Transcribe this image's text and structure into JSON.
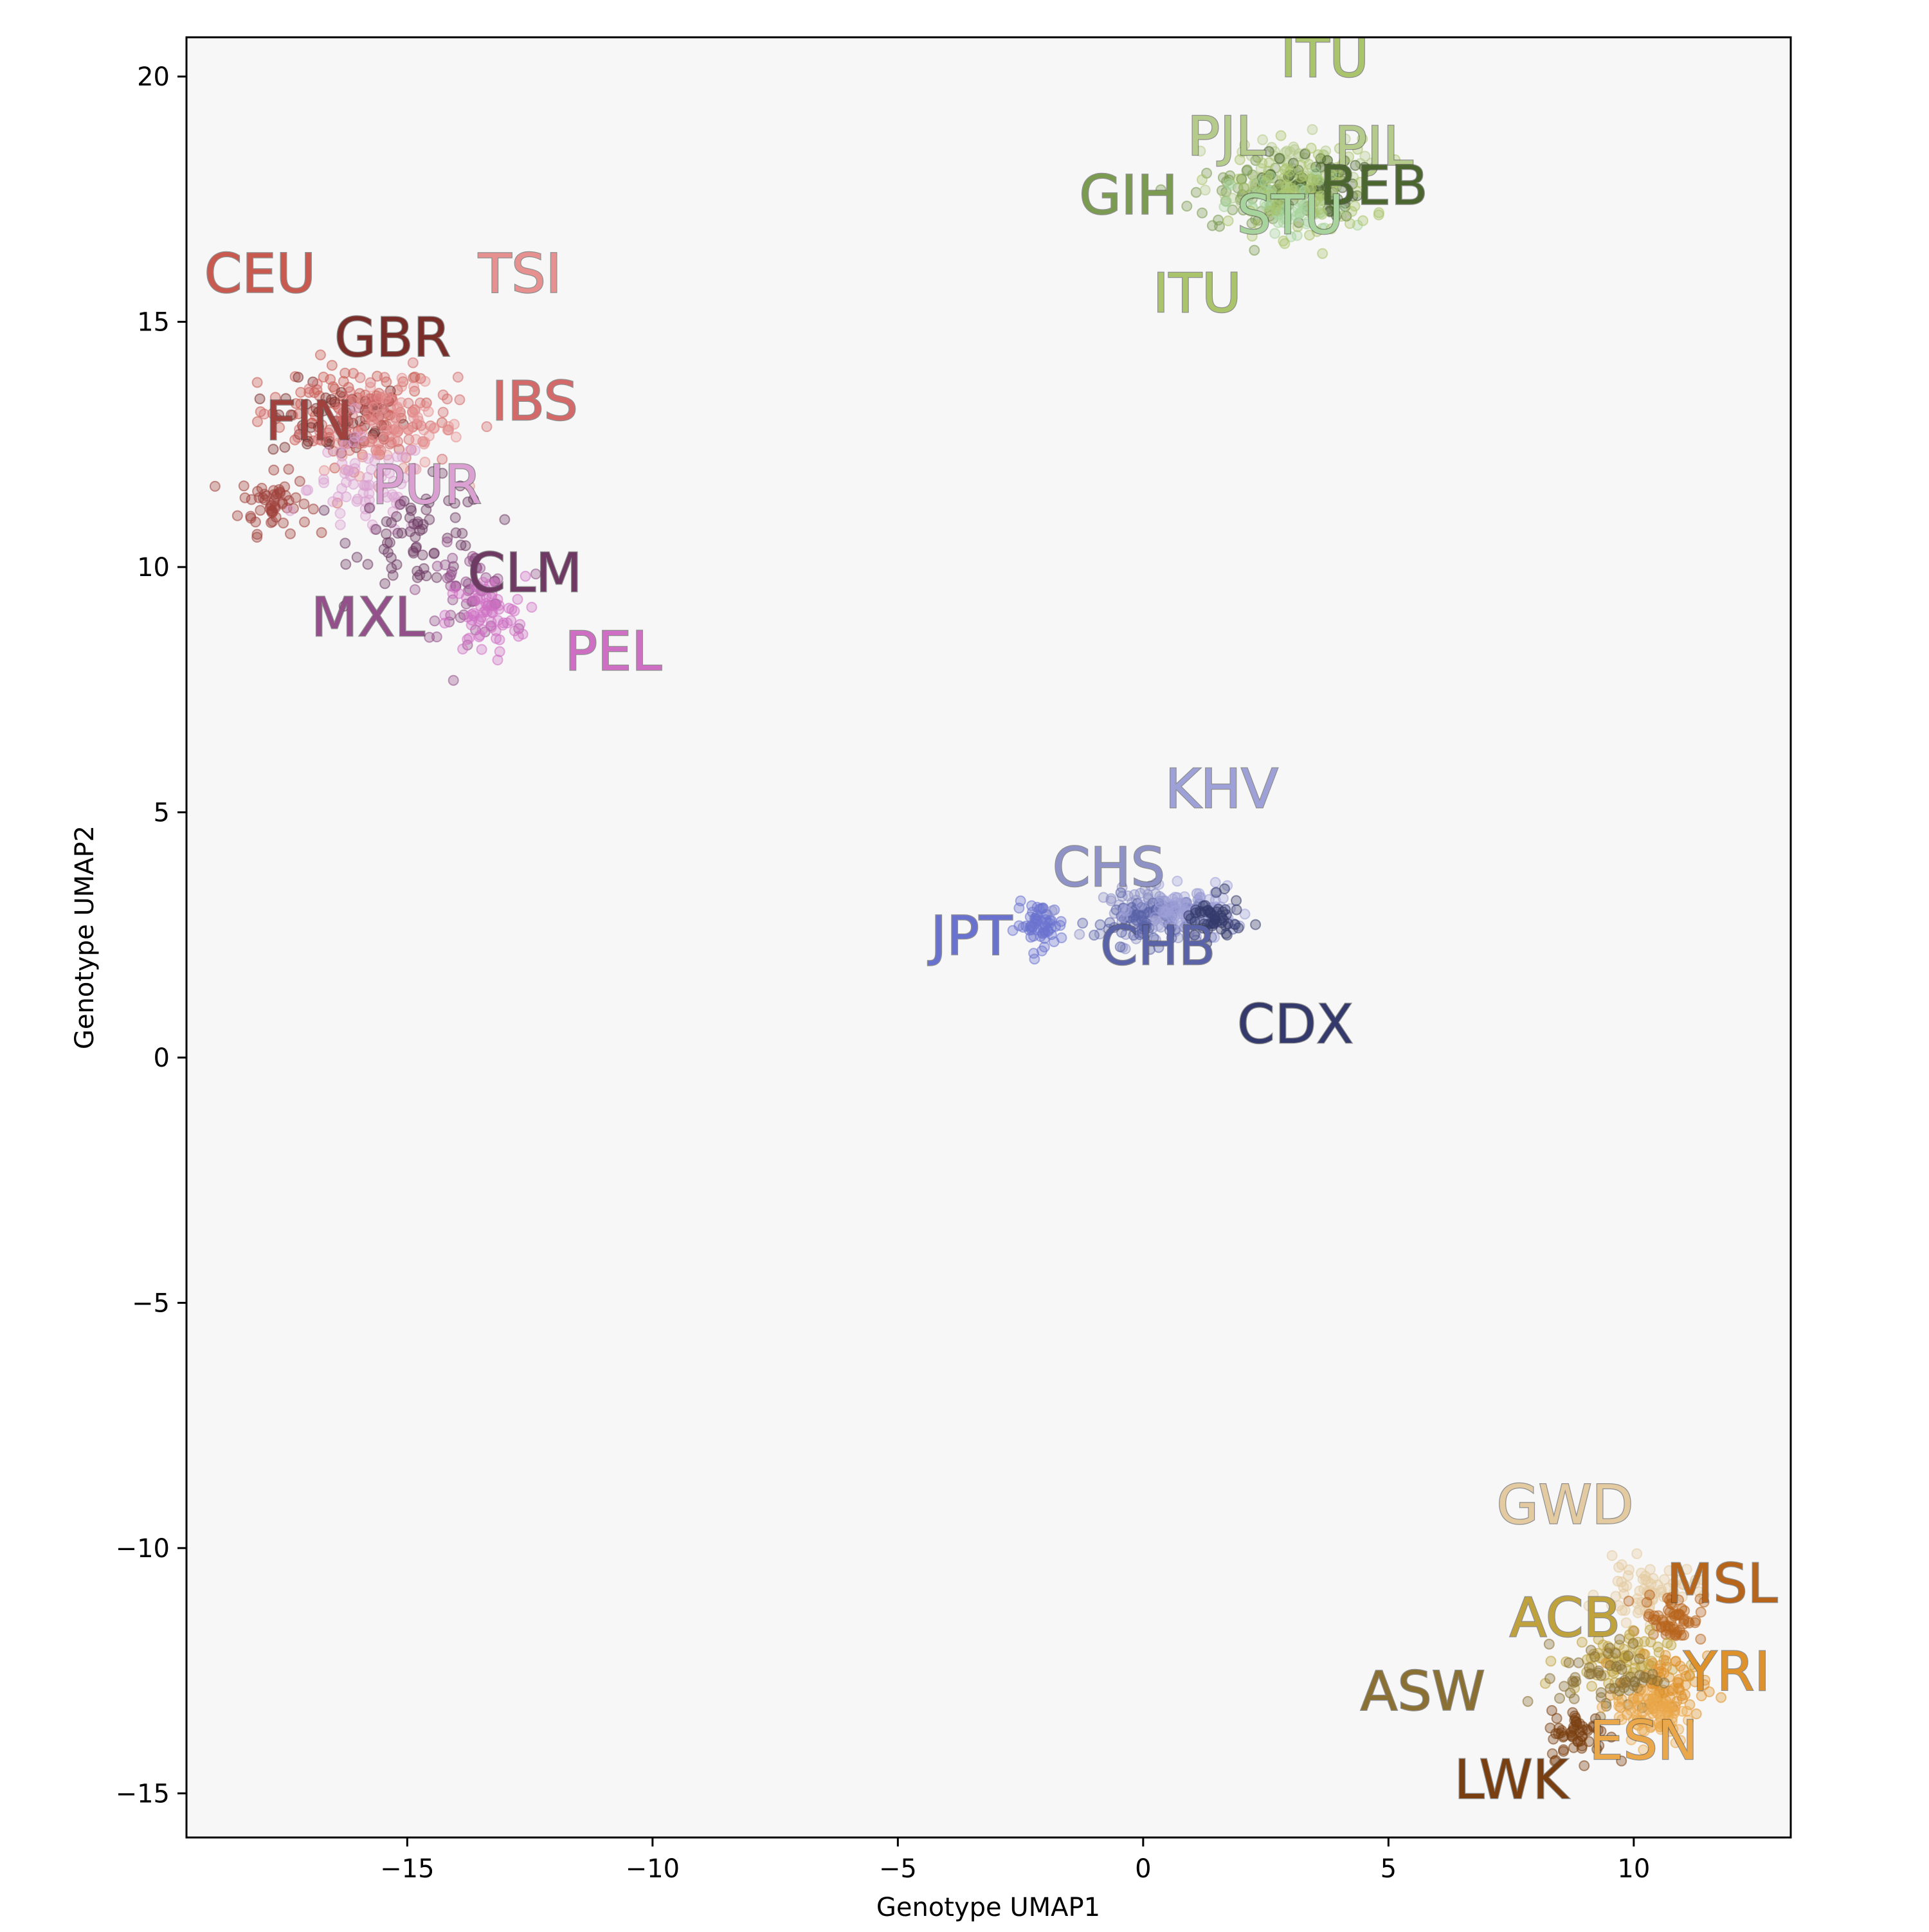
{
  "chart_data": {
    "type": "scatter",
    "title": "",
    "xlabel": "Genotype UMAP1",
    "ylabel": "Genotype UMAP2",
    "xlim": [
      -19.5,
      13.2
    ],
    "ylim": [
      -15.9,
      20.8
    ],
    "xticks": [
      -15,
      -10,
      -5,
      0,
      5,
      10
    ],
    "yticks": [
      -15,
      -10,
      -5,
      0,
      5,
      10,
      15,
      20
    ],
    "xtick_labels": [
      "−15",
      "−10",
      "−5",
      "0",
      "5",
      "10"
    ],
    "ytick_labels": [
      "−15",
      "−10",
      "−5",
      "0",
      "5",
      "10",
      "15",
      "20"
    ],
    "plot_background": "#f7f7f7",
    "grid": false,
    "legend": "none",
    "series": [
      {
        "name": "CEU",
        "color": "#c95a50",
        "cx": -16.2,
        "cy": 13.2,
        "sx": 0.9,
        "sy": 0.45,
        "n": 90
      },
      {
        "name": "GBR",
        "color": "#7a2e2a",
        "cx": -16.4,
        "cy": 13.0,
        "sx": 0.7,
        "sy": 0.4,
        "n": 60
      },
      {
        "name": "FIN",
        "color": "#a0413d",
        "cx": -17.7,
        "cy": 11.3,
        "sx": 0.35,
        "sy": 0.3,
        "n": 55
      },
      {
        "name": "IBS",
        "color": "#d4696a",
        "cx": -15.6,
        "cy": 13.0,
        "sx": 0.8,
        "sy": 0.5,
        "n": 80
      },
      {
        "name": "TSI",
        "color": "#e6908f",
        "cx": -15.3,
        "cy": 12.8,
        "sx": 0.7,
        "sy": 0.45,
        "n": 70
      },
      {
        "name": "PUR",
        "color": "#dba0d2",
        "cx": -15.8,
        "cy": 11.6,
        "sx": 0.6,
        "sy": 0.5,
        "n": 70
      },
      {
        "name": "CLM",
        "color": "#6e3a63",
        "cx": -14.7,
        "cy": 10.6,
        "sx": 0.7,
        "sy": 0.55,
        "n": 70
      },
      {
        "name": "MXL",
        "color": "#93508a",
        "cx": -13.8,
        "cy": 9.5,
        "sx": 0.45,
        "sy": 0.45,
        "n": 50
      },
      {
        "name": "PEL",
        "color": "#cf6fc4",
        "cx": -13.4,
        "cy": 9.0,
        "sx": 0.4,
        "sy": 0.4,
        "n": 70
      },
      {
        "name": "GIH",
        "color": "#7a9b50",
        "cx": 2.4,
        "cy": 17.6,
        "sx": 0.7,
        "sy": 0.4,
        "n": 80
      },
      {
        "name": "PJL",
        "color": "#b5cb8c",
        "cx": 3.0,
        "cy": 18.1,
        "sx": 0.7,
        "sy": 0.35,
        "n": 80
      },
      {
        "name": "BEB",
        "color": "#4c6630",
        "cx": 3.4,
        "cy": 17.8,
        "sx": 0.5,
        "sy": 0.35,
        "n": 60
      },
      {
        "name": "STU",
        "color": "#a7d39d",
        "cx": 3.0,
        "cy": 17.3,
        "sx": 0.6,
        "sy": 0.35,
        "n": 70
      },
      {
        "name": "ITU",
        "color": "#a9c46a",
        "cx": 3.3,
        "cy": 17.7,
        "sx": 0.7,
        "sy": 0.5,
        "n": 80
      },
      {
        "name": "JPT",
        "color": "#6a72cf",
        "cx": -2.1,
        "cy": 2.7,
        "sx": 0.25,
        "sy": 0.22,
        "n": 60
      },
      {
        "name": "CHS",
        "color": "#8e92c6",
        "cx": 0.4,
        "cy": 2.95,
        "sx": 0.6,
        "sy": 0.25,
        "n": 90
      },
      {
        "name": "CHB",
        "color": "#5a62a8",
        "cx": 0.2,
        "cy": 2.8,
        "sx": 0.6,
        "sy": 0.25,
        "n": 80
      },
      {
        "name": "KHV",
        "color": "#9ea0d8",
        "cx": 0.9,
        "cy": 3.0,
        "sx": 0.5,
        "sy": 0.22,
        "n": 70
      },
      {
        "name": "CDX",
        "color": "#343a6b",
        "cx": 1.4,
        "cy": 2.8,
        "sx": 0.3,
        "sy": 0.22,
        "n": 50
      },
      {
        "name": "GWD",
        "color": "#e4caa0",
        "cx": 10.3,
        "cy": -10.9,
        "sx": 0.5,
        "sy": 0.3,
        "n": 70
      },
      {
        "name": "MSL",
        "color": "#b8651c",
        "cx": 10.8,
        "cy": -11.4,
        "sx": 0.3,
        "sy": 0.25,
        "n": 60
      },
      {
        "name": "ACB",
        "color": "#bfa23c",
        "cx": 9.6,
        "cy": -12.3,
        "sx": 0.55,
        "sy": 0.3,
        "n": 70
      },
      {
        "name": "YRI",
        "color": "#e0922a",
        "cx": 10.6,
        "cy": -12.9,
        "sx": 0.45,
        "sy": 0.35,
        "n": 80
      },
      {
        "name": "ASW",
        "color": "#8a7033",
        "cx": 9.5,
        "cy": -12.6,
        "sx": 0.5,
        "sy": 0.35,
        "n": 60
      },
      {
        "name": "ESN",
        "color": "#eba84a",
        "cx": 10.4,
        "cy": -13.4,
        "sx": 0.4,
        "sy": 0.3,
        "n": 70
      },
      {
        "name": "LWK",
        "color": "#7a3f10",
        "cx": 8.9,
        "cy": -13.8,
        "sx": 0.3,
        "sy": 0.25,
        "n": 55
      }
    ],
    "annotations": [
      {
        "text": "CEU",
        "x": -18.0,
        "y": 15.6,
        "color": "#c95a50"
      },
      {
        "text": "TSI",
        "x": -12.7,
        "y": 15.6,
        "color": "#e6908f"
      },
      {
        "text": "GBR",
        "x": -15.3,
        "y": 14.3,
        "color": "#7a2e2a"
      },
      {
        "text": "IBS",
        "x": -12.4,
        "y": 13.0,
        "color": "#d4696a"
      },
      {
        "text": "FIN",
        "x": -17.0,
        "y": 12.6,
        "color": "#a0413d"
      },
      {
        "text": "PUR",
        "x": -14.6,
        "y": 11.3,
        "color": "#dba0d2"
      },
      {
        "text": "CLM",
        "x": -12.6,
        "y": 9.5,
        "color": "#6e3a63"
      },
      {
        "text": "MXL",
        "x": -15.8,
        "y": 8.6,
        "color": "#93508a"
      },
      {
        "text": "PEL",
        "x": -10.8,
        "y": 7.9,
        "color": "#cf6fc4"
      },
      {
        "text": "ITU",
        "x": 3.7,
        "y": 20.0,
        "color": "#a9c46a"
      },
      {
        "text": "PJL",
        "x": 1.7,
        "y": 18.4,
        "color": "#b5cb8c"
      },
      {
        "text": "PJL",
        "x": 4.7,
        "y": 18.2,
        "color": "#b5cb8c"
      },
      {
        "text": "GIH",
        "x": -0.3,
        "y": 17.2,
        "color": "#7a9b50"
      },
      {
        "text": "BEB",
        "x": 4.7,
        "y": 17.4,
        "color": "#4c6630"
      },
      {
        "text": "STU",
        "x": 3.0,
        "y": 16.8,
        "color": "#a7d39d"
      },
      {
        "text": "ITU",
        "x": 1.1,
        "y": 15.2,
        "color": "#a9c46a"
      },
      {
        "text": "KHV",
        "x": 1.6,
        "y": 5.1,
        "color": "#9ea0d8"
      },
      {
        "text": "CHS",
        "x": -0.7,
        "y": 3.5,
        "color": "#8e92c6"
      },
      {
        "text": "JPT",
        "x": -3.5,
        "y": 2.1,
        "color": "#6a72cf"
      },
      {
        "text": "CHB",
        "x": 0.3,
        "y": 1.9,
        "color": "#5a62a8"
      },
      {
        "text": "CDX",
        "x": 3.1,
        "y": 0.3,
        "color": "#343a6b"
      },
      {
        "text": "GWD",
        "x": 8.6,
        "y": -9.5,
        "color": "#e4caa0"
      },
      {
        "text": "MSL",
        "x": 11.8,
        "y": -11.1,
        "color": "#b8651c"
      },
      {
        "text": "ACB",
        "x": 8.6,
        "y": -11.8,
        "color": "#bfa23c"
      },
      {
        "text": "YRI",
        "x": 11.9,
        "y": -12.9,
        "color": "#e0922a"
      },
      {
        "text": "ASW",
        "x": 5.7,
        "y": -13.3,
        "color": "#8a7033"
      },
      {
        "text": "ESN",
        "x": 10.2,
        "y": -14.3,
        "color": "#eba84a"
      },
      {
        "text": "LWK",
        "x": 7.5,
        "y": -15.1,
        "color": "#7a3f10"
      }
    ]
  }
}
